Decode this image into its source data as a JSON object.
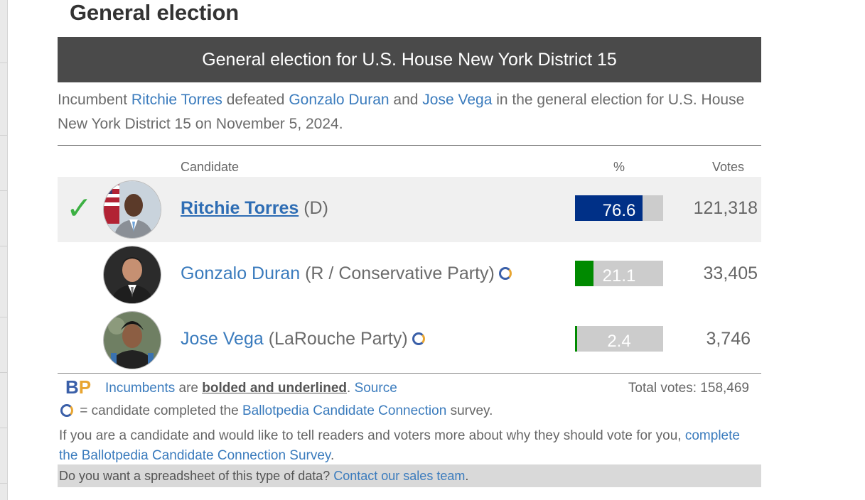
{
  "page_title": "General election",
  "race": {
    "header": "General election for U.S. House New York District 15",
    "summary": {
      "prefix": "Incumbent ",
      "winner": "Ritchie Torres",
      "mid1": " defeated ",
      "loser1": "Gonzalo Duran",
      "mid2": " and ",
      "loser2": "Jose Vega",
      "suffix": " in the general election for U.S. House New York District 15 on November 5, 2024."
    },
    "columns": {
      "candidate": "Candidate",
      "percent": "%",
      "votes": "Votes"
    },
    "candidates": [
      {
        "name": "Ritchie Torres",
        "party": "(D)",
        "percent": 76.6,
        "percent_label": "76.6",
        "votes": "121,318",
        "winner": true,
        "incumbent": true,
        "candidate_connection": false,
        "bar_color": "#003087"
      },
      {
        "name": "Gonzalo Duran",
        "party": "(R / Conservative Party)",
        "percent": 21.1,
        "percent_label": "21.1",
        "votes": "33,405",
        "winner": false,
        "incumbent": false,
        "candidate_connection": true,
        "bar_color": "#008a00"
      },
      {
        "name": "Jose Vega",
        "party": "(LaRouche Party)",
        "percent": 2.4,
        "percent_label": "2.4",
        "votes": "3,746",
        "winner": false,
        "incumbent": false,
        "candidate_connection": true,
        "bar_color": "#008a00"
      }
    ],
    "winner_icon": "checkmark-icon"
  },
  "footer": {
    "logo": {
      "b": "B",
      "p": "P"
    },
    "incumbents_link": "Incumbents",
    "are_text": " are ",
    "bolded_text": "bolded and underlined",
    "period": ". ",
    "source_link": "Source",
    "total_votes": "Total votes: 158,469",
    "legend_text": " = candidate completed the ",
    "legend_link": "Ballotpedia Candidate Connection",
    "legend_suffix": " survey.",
    "cta_text": "If you are a candidate and would like to tell readers and voters more about why they should vote for you, ",
    "cta_link": "complete the Ballotpedia Candidate Connection Survey",
    "cta_end": ".",
    "sales_text": "Do you want a spreadsheet of this type of data? ",
    "sales_link": "Contact our sales team",
    "sales_end": "."
  },
  "colors": {
    "header_bg": "#4a4a4a",
    "link": "#3a7bbd",
    "check": "#3cb043",
    "bar_bg": "#cccccc"
  }
}
